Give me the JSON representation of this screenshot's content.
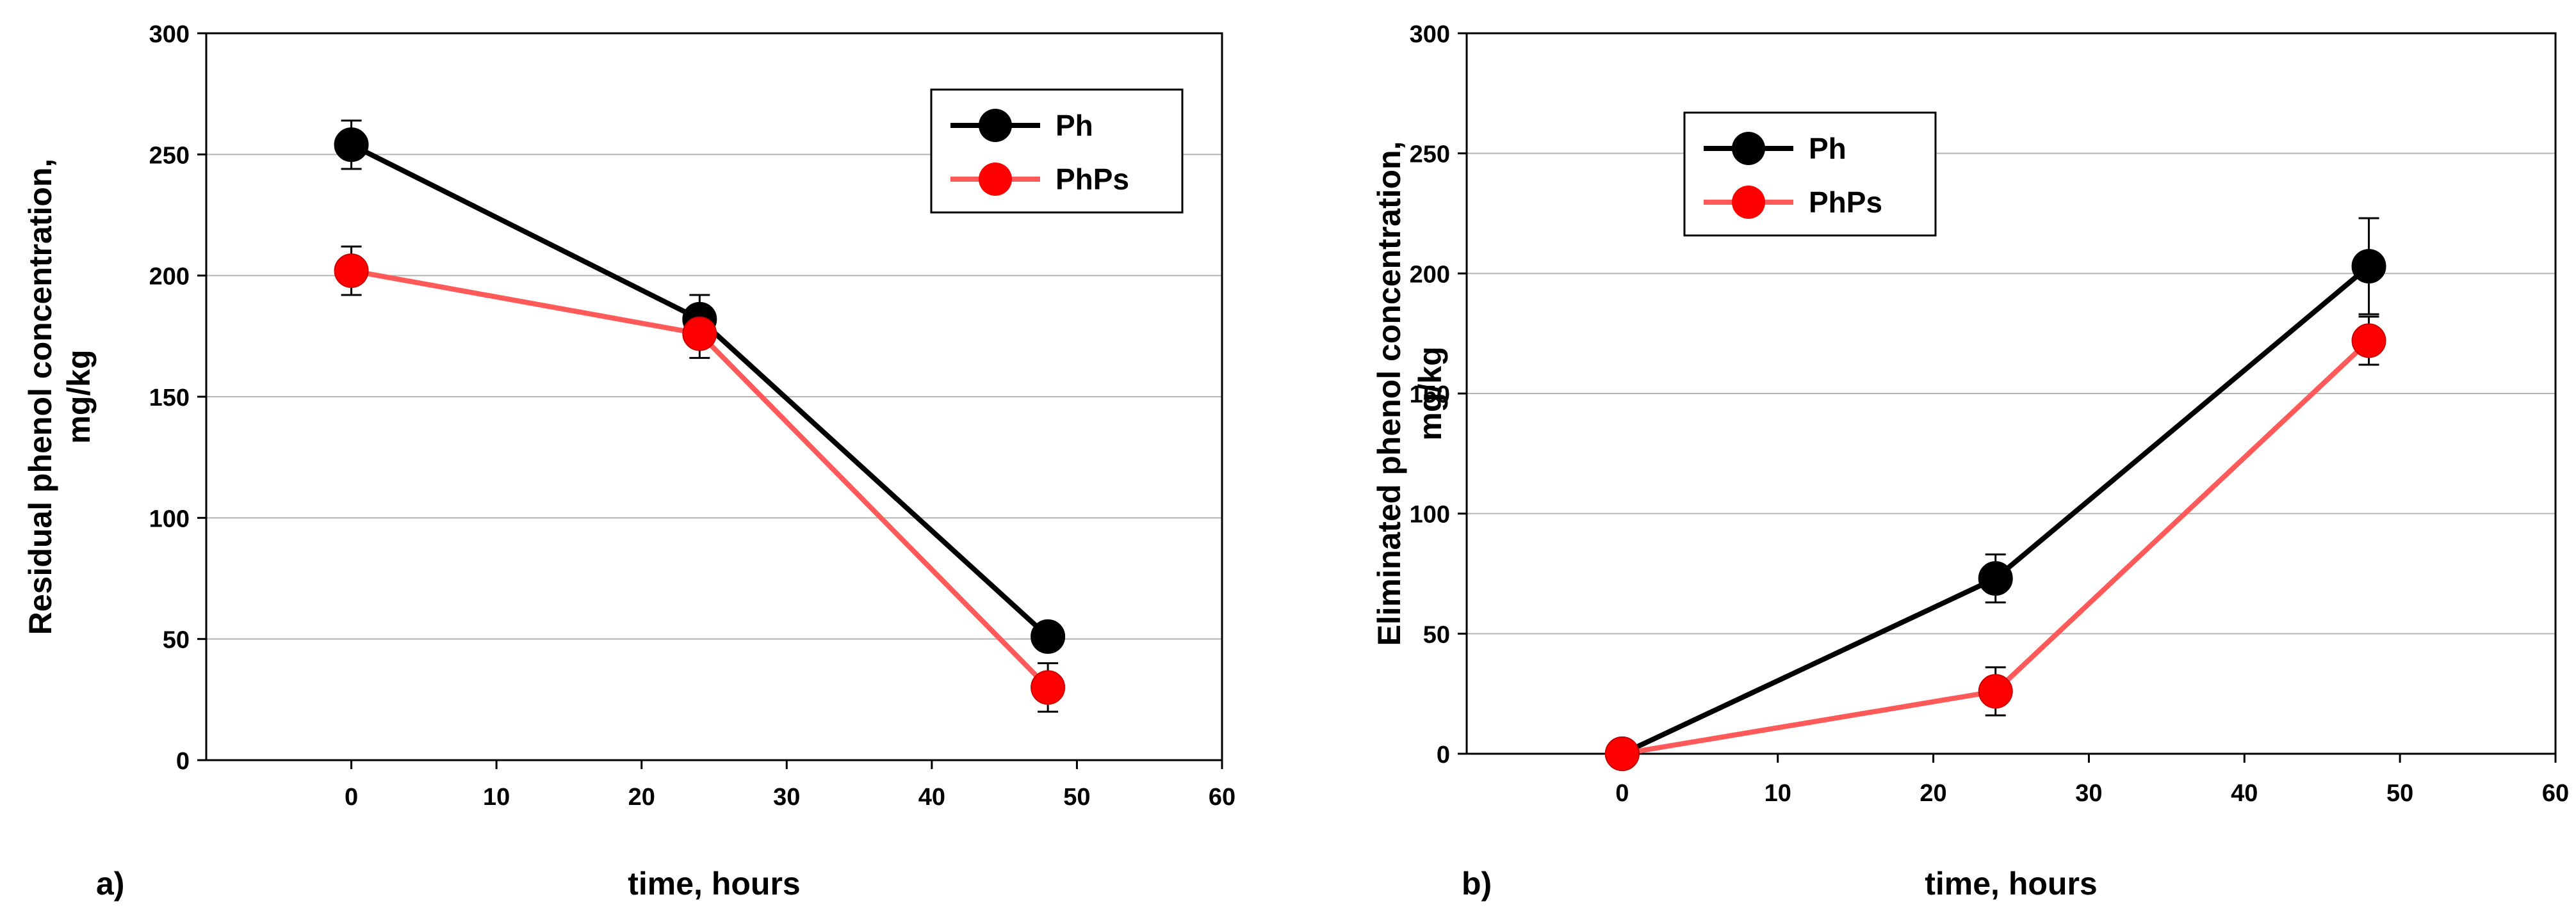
{
  "chart_data": [
    {
      "type": "line",
      "panel_label": "a)",
      "xlabel": "time, hours",
      "ylabel_lines": [
        "Residual phenol concentration,",
        "mg/kg"
      ],
      "xlim": [
        -10,
        60
      ],
      "ylim": [
        0,
        300
      ],
      "xticks": [
        0,
        10,
        20,
        30,
        40,
        50,
        60
      ],
      "yticks": [
        0,
        50,
        100,
        150,
        200,
        250,
        300
      ],
      "grid": "horizontal",
      "legend_position": "top-right",
      "series": [
        {
          "name": "Ph",
          "color": "#000000",
          "x": [
            0,
            24,
            48
          ],
          "y": [
            254,
            182,
            51
          ],
          "err": [
            10,
            10,
            0
          ]
        },
        {
          "name": "PhPs",
          "color": "#ff0000",
          "line_color": "#ff5a5a",
          "x": [
            0,
            24,
            48
          ],
          "y": [
            202,
            176,
            30
          ],
          "err": [
            10,
            10,
            10
          ]
        }
      ]
    },
    {
      "type": "line",
      "panel_label": "b)",
      "xlabel": "time, hours",
      "ylabel_lines": [
        "Eliminated phenol concentration,",
        "mg/kg"
      ],
      "xlim": [
        -10,
        60
      ],
      "ylim": [
        0,
        300
      ],
      "xticks": [
        0,
        10,
        20,
        30,
        40,
        50,
        60
      ],
      "yticks": [
        0,
        50,
        100,
        150,
        200,
        250,
        300
      ],
      "grid": "horizontal",
      "legend_position": "top-left",
      "series": [
        {
          "name": "Ph",
          "color": "#000000",
          "x": [
            0,
            24,
            48
          ],
          "y": [
            0,
            73,
            203
          ],
          "err": [
            0,
            10,
            20
          ]
        },
        {
          "name": "PhPs",
          "color": "#ff0000",
          "line_color": "#ff5a5a",
          "x": [
            0,
            24,
            48
          ],
          "y": [
            0,
            26,
            172
          ],
          "err": [
            0,
            10,
            10
          ]
        }
      ]
    }
  ]
}
